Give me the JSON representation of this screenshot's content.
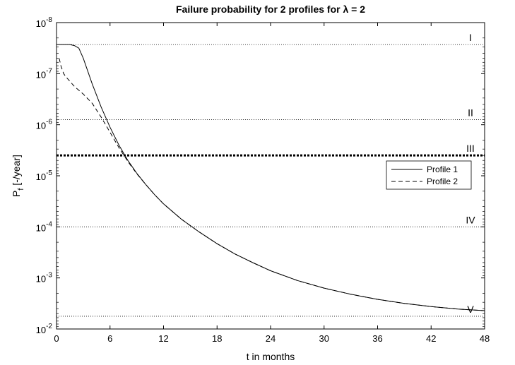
{
  "chart_data": {
    "type": "line",
    "title": "Failure probability for 2 profiles for λ = 2",
    "xlabel": "t in months",
    "ylabel": "P",
    "ylabel_sub": "f",
    "ylabel_unit": " [-/year]",
    "xlim": [
      0,
      48
    ],
    "ylim_exponents": [
      -8,
      -2
    ],
    "y_scale": "log",
    "y_inverted": true,
    "x_ticks": [
      "0",
      "6",
      "12",
      "18",
      "24",
      "30",
      "36",
      "42",
      "48"
    ],
    "y_tick_base": "10",
    "y_tick_exponents": [
      "-8",
      "-7",
      "-6",
      "-5",
      "-4",
      "-3",
      "-2"
    ],
    "legend_position": "right",
    "series": [
      {
        "name": "Profile 1",
        "style": "solid",
        "x": [
          0,
          1,
          1.5,
          2,
          2.5,
          3,
          3.5,
          4,
          5,
          6,
          7,
          8,
          9,
          10,
          11,
          12,
          14,
          16,
          18,
          20,
          22,
          24,
          27,
          30,
          33,
          36,
          39,
          42,
          45,
          48
        ],
        "log10_y": [
          -7.57,
          -7.57,
          -7.57,
          -7.55,
          -7.5,
          -7.3,
          -7.05,
          -6.8,
          -6.35,
          -5.95,
          -5.6,
          -5.3,
          -5.05,
          -4.83,
          -4.63,
          -4.45,
          -4.15,
          -3.9,
          -3.67,
          -3.47,
          -3.3,
          -3.14,
          -2.95,
          -2.8,
          -2.68,
          -2.58,
          -2.5,
          -2.44,
          -2.39,
          -2.36
        ]
      },
      {
        "name": "Profile 2",
        "style": "dashed",
        "x": [
          0.3,
          0.5,
          0.8,
          1,
          1.5,
          2,
          3,
          4,
          5,
          6,
          7,
          8,
          9,
          10,
          11,
          12,
          14,
          16,
          18,
          20,
          22,
          24,
          27,
          30,
          33,
          36,
          39,
          42,
          45,
          48
        ],
        "log10_y": [
          -7.3,
          -7.15,
          -7.0,
          -6.95,
          -6.85,
          -6.75,
          -6.6,
          -6.42,
          -6.15,
          -5.85,
          -5.55,
          -5.28,
          -5.04,
          -4.83,
          -4.63,
          -4.45,
          -4.15,
          -3.9,
          -3.67,
          -3.47,
          -3.3,
          -3.14,
          -2.95,
          -2.8,
          -2.68,
          -2.58,
          -2.5,
          -2.44,
          -2.39,
          -2.36
        ]
      }
    ],
    "reference_lines": [
      {
        "label": "I",
        "log10_y": -7.57,
        "style": "dotted"
      },
      {
        "label": "II",
        "log10_y": -6.1,
        "style": "dotted"
      },
      {
        "label": "III",
        "log10_y": -5.4,
        "style": "bold-dotted"
      },
      {
        "label": "IV",
        "log10_y": -4.0,
        "style": "dotted"
      },
      {
        "label": "V",
        "log10_y": -2.25,
        "style": "dotted"
      }
    ]
  }
}
